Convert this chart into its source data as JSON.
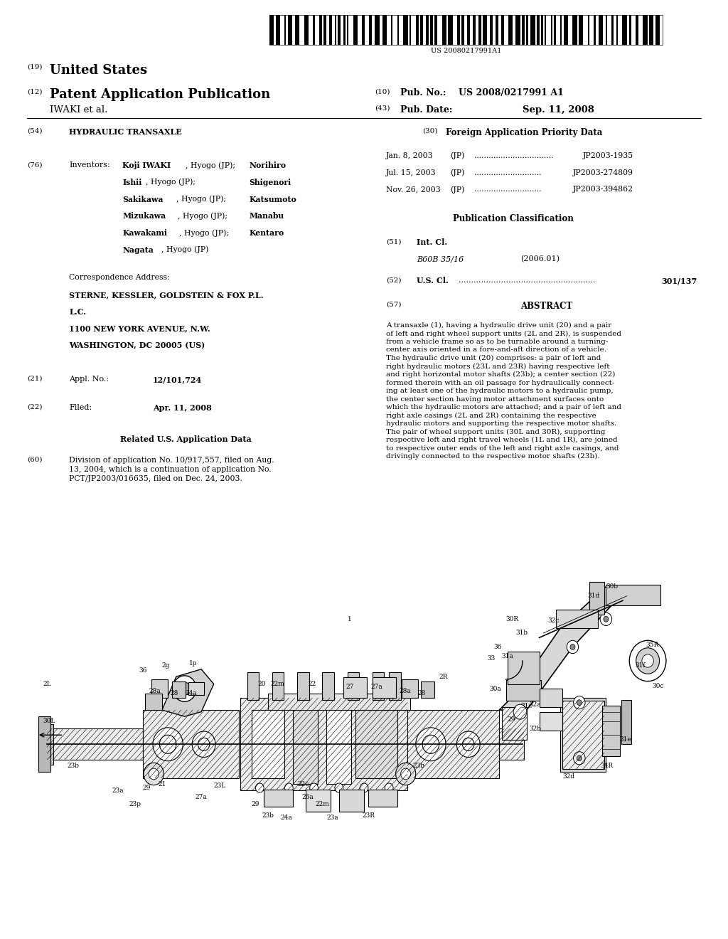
{
  "bg_color": "#ffffff",
  "barcode_text": "US 20080217991A1",
  "header_19_text": "United States",
  "header_12_text": "Patent Application Publication",
  "header_iwaki": "IWAKI et al.",
  "header_10_label": "Pub. No.:",
  "header_10_value": "US 2008/0217991 A1",
  "header_43_label": "Pub. Date:",
  "header_43_value": "Sep. 11, 2008",
  "section_54_title": "HYDRAULIC TRANSAXLE",
  "section_76_title": "Inventors:",
  "correspondence_label": "Correspondence Address:",
  "correspondence_lines": [
    "STERNE, KESSLER, GOLDSTEIN & FOX P.L.",
    "L.C.",
    "1100 NEW YORK AVENUE, N.W.",
    "WASHINGTON, DC 20005 (US)"
  ],
  "section_21_title": "Appl. No.:",
  "section_21_value": "12/101,724",
  "section_22_title": "Filed:",
  "section_22_value": "Apr. 11, 2008",
  "related_title": "Related U.S. Application Data",
  "section_60_text": "Division of application No. 10/917,557, filed on Aug.\n13, 2004, which is a continuation of application No.\nPCT/JP2003/016635, filed on Dec. 24, 2003.",
  "section_30_title": "Foreign Application Priority Data",
  "foreign_data": [
    {
      "date": "Jan. 8, 2003",
      "country": "(JP)",
      "dots": ".................................",
      "number": "JP2003-1935"
    },
    {
      "date": "Jul. 15, 2003",
      "country": "(JP)",
      "dots": "............................",
      "number": "JP2003-274809"
    },
    {
      "date": "Nov. 26, 2003",
      "country": "(JP)",
      "dots": "............................",
      "number": "JP2003-394862"
    }
  ],
  "pub_class_title": "Publication Classification",
  "section_51_title": "Int. Cl.",
  "section_51_class": "B60B 35/16",
  "section_51_year": "(2006.01)",
  "section_52_title": "U.S. Cl.",
  "section_52_dots": ".......................................................",
  "section_52_value": "301/137",
  "section_57_title": "ABSTRACT",
  "abstract_text": "A transaxle (1), having a hydraulic drive unit (20) and a pair\nof left and right wheel support units (2L and 2R), is suspended\nfrom a vehicle frame so as to be turnable around a turning-\ncenter axis oriented in a fore-and-aft direction of a vehicle.\nThe hydraulic drive unit (20) comprises: a pair of left and\nright hydraulic motors (23L and 23R) having respective left\nand right horizontal motor shafts (23b); a center section (22)\nformed therein with an oil passage for hydraulically connect-\ning at least one of the hydraulic motors to a hydraulic pump,\nthe center section having motor attachment surfaces onto\nwhich the hydraulic motors are attached; and a pair of left and\nright axle casings (2L and 2R) containing the respective\nhydraulic motors and supporting the respective motor shafts.\nThe pair of wheel support units (30L and 30R), supporting\nrespective left and right travel wheels (1L and 1R), are joined\nto respective outer ends of the left and right axle casings, and\ndrivingly connected to the respective motor shafts (23b).",
  "inventors": [
    [
      "Koji IWAKI",
      true,
      ", Hyogo (JP); ",
      false,
      "Norihiro",
      true
    ],
    [
      "Ishii",
      true,
      ", Hyogo (JP); ",
      false,
      "Shigenori",
      true
    ],
    [
      "Sakikawa",
      true,
      ", Hyogo (JP); ",
      false,
      "Katsumoto",
      true
    ],
    [
      "Mizukawa",
      true,
      ", Hyogo (JP); ",
      false,
      "Manabu",
      true
    ],
    [
      "Kawakami",
      true,
      ", Hyogo (JP); ",
      false,
      "Kentaro",
      true
    ],
    [
      "Nagata",
      true,
      ", Hyogo (JP)",
      false,
      "",
      false
    ]
  ]
}
